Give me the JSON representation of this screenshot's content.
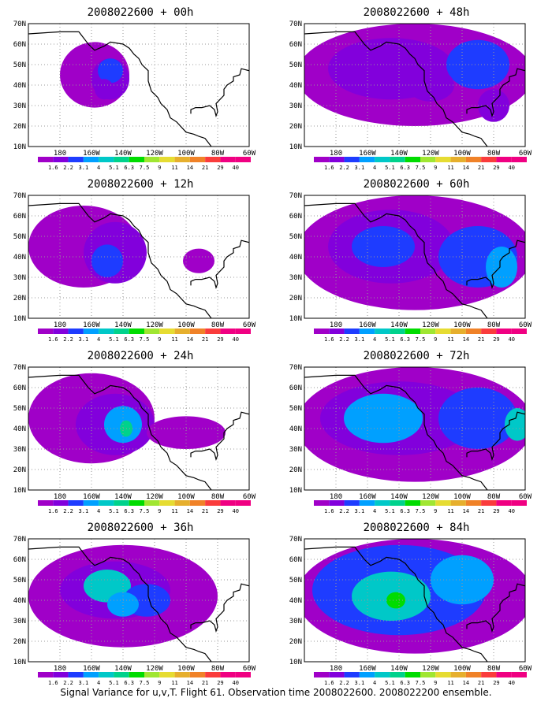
{
  "colors": {
    "levels": [
      "#a000c8",
      "#8200dc",
      "#1e3cff",
      "#00a0ff",
      "#00c8c8",
      "#00d28c",
      "#00dc00",
      "#a0e632",
      "#e6dc32",
      "#e6af2d",
      "#f08228",
      "#fa3c3c",
      "#f00082"
    ],
    "coast": "#000000",
    "grid": "#999999",
    "marker_red": "#ff0000"
  },
  "chart_data": {
    "type": "heatmap",
    "xlim": [
      -200,
      -60
    ],
    "ylim": [
      10,
      70
    ],
    "xticks": [
      "180",
      "160W",
      "140W",
      "120W",
      "100W",
      "80W",
      "60W"
    ],
    "yticks": [
      "10N",
      "20N",
      "30N",
      "40N",
      "50N",
      "60N",
      "70N"
    ],
    "colorbar_labels": [
      "1.6",
      "2.2",
      "3.1",
      "4",
      "5.1",
      "6.3",
      "7.5",
      "9",
      "11",
      "14",
      "21",
      "29",
      "40"
    ],
    "caption": "Signal Variance for u,v,T. Flight 61. Observation time 2008022600. 2008022200 ensemble.",
    "panels": [
      {
        "title": "2008022600 + 00h",
        "blobs": [
          [
            -158,
            45,
            22,
            16,
            0
          ],
          [
            -148,
            43,
            12,
            10,
            1
          ],
          [
            -148,
            47,
            8,
            6,
            2
          ],
          [
            -152,
            38,
            6,
            5,
            1
          ]
        ]
      },
      {
        "title": "2008022600 + 12h",
        "blobs": [
          [
            -165,
            45,
            35,
            20,
            0
          ],
          [
            -145,
            42,
            20,
            15,
            1
          ],
          [
            -150,
            38,
            10,
            8,
            2
          ],
          [
            -92,
            38,
            10,
            6,
            0
          ]
        ]
      },
      {
        "title": "2008022600 + 24h",
        "blobs": [
          [
            -160,
            45,
            40,
            22,
            0
          ],
          [
            -145,
            42,
            25,
            15,
            1
          ],
          [
            -140,
            42,
            12,
            9,
            3
          ],
          [
            -138,
            40,
            4,
            4,
            5
          ],
          [
            -100,
            38,
            25,
            8,
            0
          ]
        ]
      },
      {
        "title": "2008022600 + 36h",
        "blobs": [
          [
            -140,
            42,
            60,
            25,
            0
          ],
          [
            -145,
            45,
            35,
            14,
            1
          ],
          [
            -150,
            47,
            15,
            8,
            4
          ],
          [
            -125,
            40,
            15,
            8,
            2
          ],
          [
            -140,
            38,
            10,
            6,
            3
          ]
        ]
      },
      {
        "title": "2008022600 + 48h",
        "blobs": [
          [
            -130,
            45,
            75,
            25,
            0
          ],
          [
            -145,
            48,
            40,
            15,
            1
          ],
          [
            -90,
            50,
            20,
            12,
            2
          ],
          [
            -80,
            30,
            10,
            8,
            1
          ],
          [
            -120,
            40,
            15,
            8,
            1
          ]
        ]
      },
      {
        "title": "2008022600 + 60h",
        "blobs": [
          [
            -130,
            42,
            75,
            28,
            0
          ],
          [
            -145,
            45,
            40,
            18,
            1
          ],
          [
            -150,
            45,
            20,
            10,
            2
          ],
          [
            -90,
            40,
            25,
            15,
            2
          ],
          [
            -75,
            35,
            10,
            10,
            3
          ]
        ]
      },
      {
        "title": "2008022600 + 72h",
        "blobs": [
          [
            -130,
            42,
            75,
            28,
            0
          ],
          [
            -140,
            45,
            50,
            18,
            1
          ],
          [
            -150,
            45,
            25,
            12,
            3
          ],
          [
            -90,
            45,
            25,
            15,
            2
          ],
          [
            -65,
            42,
            8,
            8,
            4
          ]
        ]
      },
      {
        "title": "2008022600 + 84h",
        "blobs": [
          [
            -130,
            42,
            75,
            28,
            0
          ],
          [
            -140,
            45,
            55,
            22,
            2
          ],
          [
            -145,
            42,
            25,
            12,
            4
          ],
          [
            -142,
            40,
            6,
            4,
            6
          ],
          [
            -100,
            50,
            20,
            12,
            3
          ]
        ]
      }
    ]
  }
}
